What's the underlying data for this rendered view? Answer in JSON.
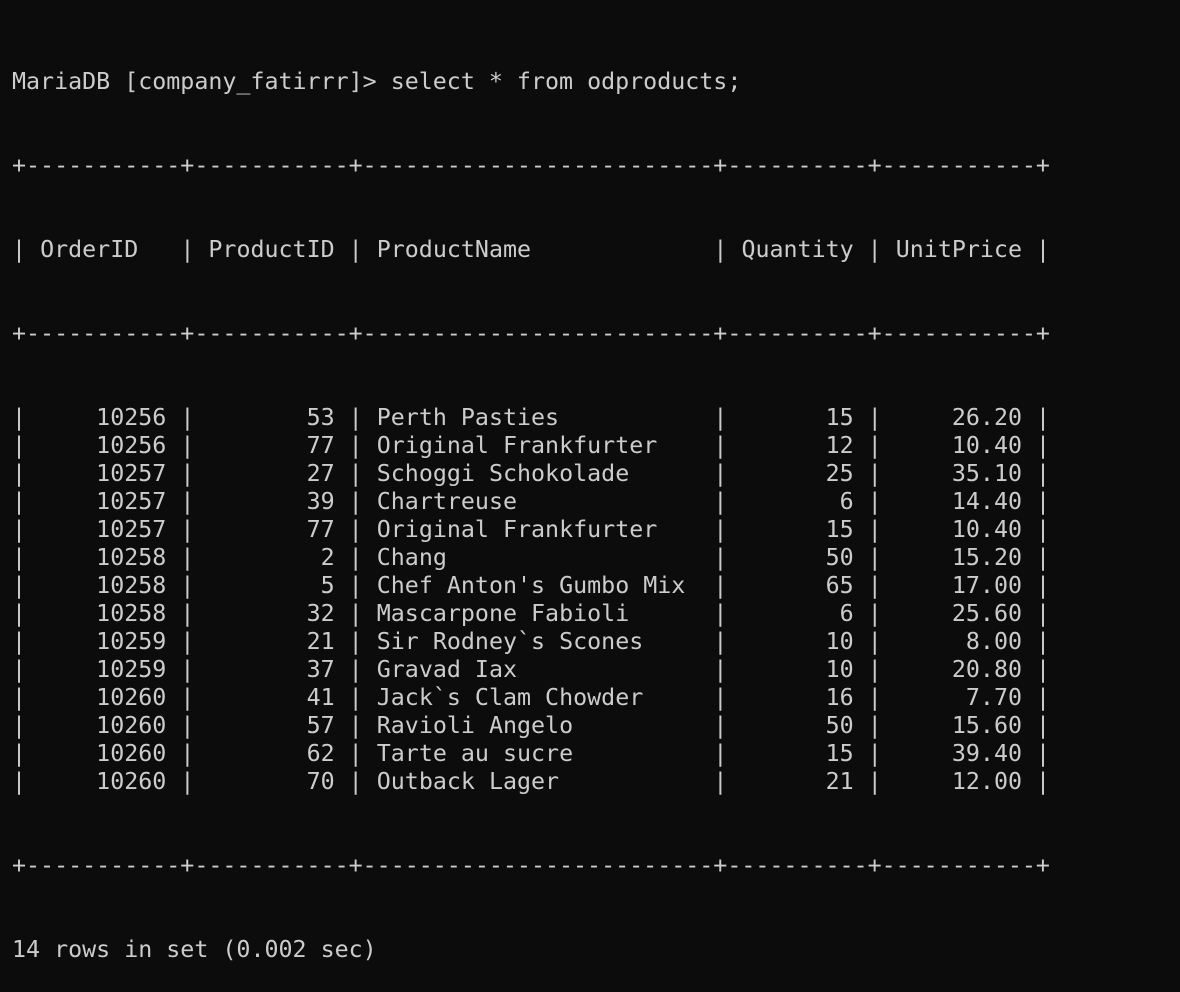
{
  "prompt": "MariaDB [company_fatirrr]> ",
  "command": "select * from odproducts;",
  "columns": [
    {
      "name": "OrderID",
      "width": 9,
      "align": "right"
    },
    {
      "name": "ProductID",
      "width": 9,
      "align": "right"
    },
    {
      "name": "ProductName",
      "width": 23,
      "align": "left"
    },
    {
      "name": "Quantity",
      "width": 8,
      "align": "right"
    },
    {
      "name": "UnitPrice",
      "width": 9,
      "align": "right"
    }
  ],
  "rows": [
    [
      "10256",
      "53",
      "Perth Pasties",
      "15",
      "26.20"
    ],
    [
      "10256",
      "77",
      "Original Frankfurter",
      "12",
      "10.40"
    ],
    [
      "10257",
      "27",
      "Schoggi Schokolade",
      "25",
      "35.10"
    ],
    [
      "10257",
      "39",
      "Chartreuse",
      "6",
      "14.40"
    ],
    [
      "10257",
      "77",
      "Original Frankfurter",
      "15",
      "10.40"
    ],
    [
      "10258",
      "2",
      "Chang",
      "50",
      "15.20"
    ],
    [
      "10258",
      "5",
      "Chef Anton's Gumbo Mix",
      "65",
      "17.00"
    ],
    [
      "10258",
      "32",
      "Mascarpone Fabioli",
      "6",
      "25.60"
    ],
    [
      "10259",
      "21",
      "Sir Rodney`s Scones",
      "10",
      "8.00"
    ],
    [
      "10259",
      "37",
      "Gravad Iax",
      "10",
      "20.80"
    ],
    [
      "10260",
      "41",
      "Jack`s Clam Chowder",
      "16",
      "7.70"
    ],
    [
      "10260",
      "57",
      "Ravioli Angelo",
      "50",
      "15.60"
    ],
    [
      "10260",
      "62",
      "Tarte au sucre",
      "15",
      "39.40"
    ],
    [
      "10260",
      "70",
      "Outback Lager",
      "21",
      "12.00"
    ]
  ],
  "footer": "14 rows in set (0.002 sec)",
  "colors": {
    "background": "#0c0c0c",
    "text": "#cccccc"
  }
}
